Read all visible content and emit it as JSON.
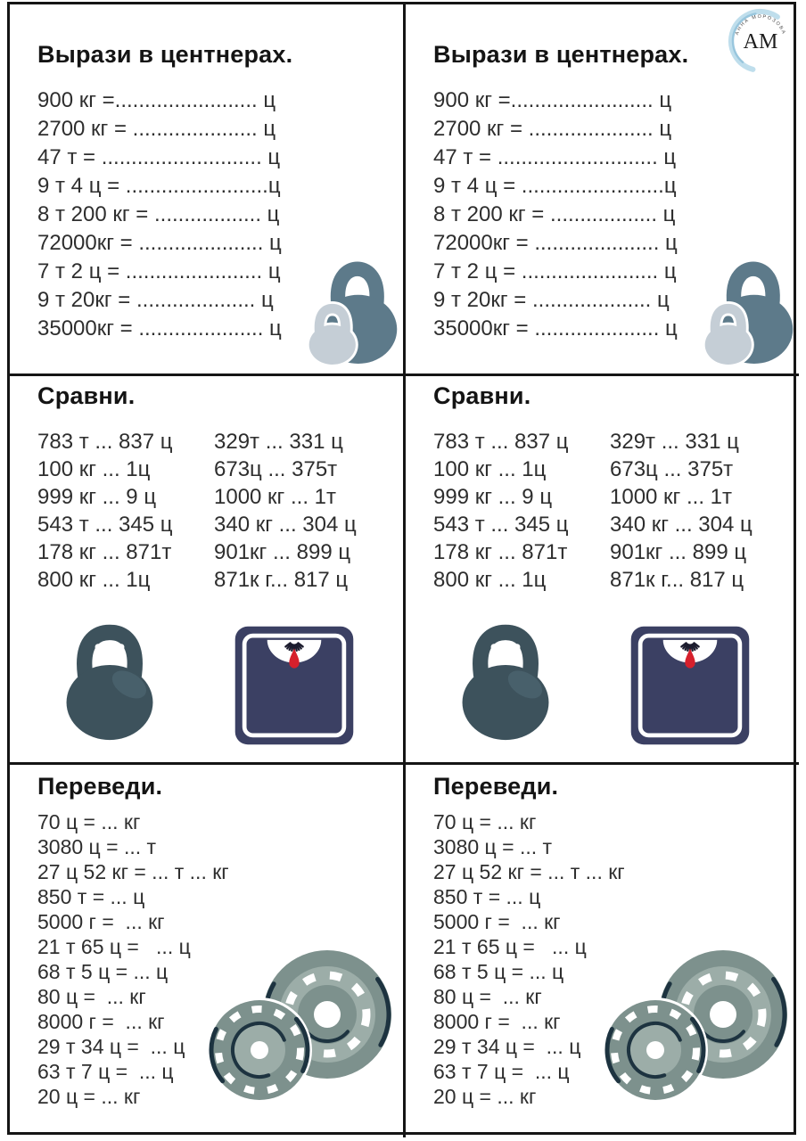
{
  "logo": {
    "initials": "AM",
    "arc_text": "АННА МОРОЗОВА"
  },
  "sections": {
    "express": {
      "title": "Вырази в центнерах.",
      "lines": [
        "900 кг =........................ ц",
        "2700 кг = ..................... ц",
        "47 т = ........................... ц",
        "9 т 4 ц = ........................ц",
        "8 т 200 кг = .................. ц",
        "72000кг = ..................... ц",
        "7 т 2 ц = ....................... ц",
        "9 т 20кг = .................... ц",
        "35000кг = ..................... ц"
      ]
    },
    "compare": {
      "title": "Сравни.",
      "col1": [
        "783 т ... 837 ц",
        "100 кг ... 1ц",
        "999 кг ... 9 ц",
        "543 т ... 345 ц",
        "178 кг ... 871т",
        "800 кг ... 1ц"
      ],
      "col2": [
        "329т ... 331 ц",
        "673ц ... 375т",
        "1000 кг ... 1т",
        "340 кг ... 304 ц",
        "901кг ... 899 ц",
        "871к г... 817 ц"
      ]
    },
    "convert": {
      "title": "Переведи.",
      "lines": [
        "70 ц = ... кг",
        "3080 ц = ... т",
        "27 ц 52 кг = ... т ... кг",
        "850 т = ... ц",
        "5000 г =  ... кг",
        "21 т 65 ц =   ... ц",
        "68 т 5 ц = ... ц",
        "80 ц =  ... кг",
        "8000 г =  ... кг",
        "29 т 34 ц =  ... ц",
        "63 т 7 ц =  ... ц",
        "20 ц = ... кг"
      ]
    }
  },
  "icons": {
    "express_icon": "kettlebell-pair-icon",
    "compare_icons": [
      "kettlebell-icon",
      "weighing-scale-icon"
    ],
    "convert_icon": "weight-plates-icon"
  },
  "colors": {
    "border_dark": "#151515",
    "text_dark": "#2e2e2e",
    "kb_slate": "#5d7a8a",
    "kb_light": "#c5ced6",
    "kb_dark": "#3d525c",
    "kb_dark_hl": "#48606b",
    "scale_navy": "#3b4063",
    "needle_red": "#d6202c",
    "plate_body": "#7d918d",
    "plate_ring_light": "#9cada8",
    "plate_navy": "#1d3340",
    "logo_blue": "#a9d3e6",
    "logo_blue_deep": "#7fb6d4"
  }
}
